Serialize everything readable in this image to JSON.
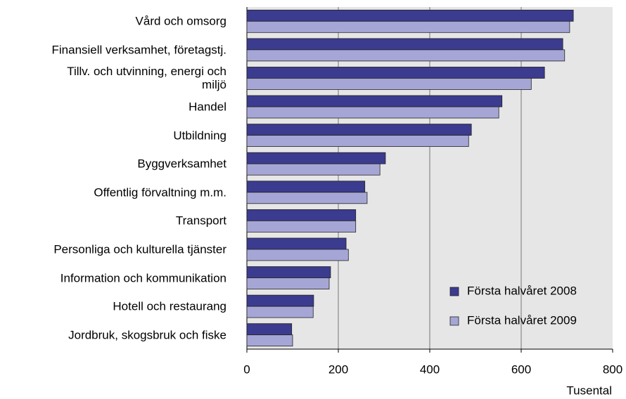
{
  "chart_data": {
    "type": "hbar",
    "categories": [
      "Vård och omsorg",
      "Finansiell verksamhet, företagstj.",
      "Tillv. och utvinning, energi och\nmiljö",
      "Handel",
      "Utbildning",
      "Byggverksamhet",
      "Offentlig förvaltning m.m.",
      "Transport",
      "Personliga och kulturella tjänster",
      "Information och kommunikation",
      "Hotell och restaurang",
      "Jordbruk, skogsbruk och fiske"
    ],
    "series": [
      {
        "name": "Första halvåret 2008",
        "color": "#3b3b8f",
        "values": [
          714,
          691,
          651,
          558,
          491,
          303,
          258,
          238,
          217,
          183,
          146,
          98
        ]
      },
      {
        "name": "Första halvåret 2009",
        "color": "#a6a6d6",
        "values": [
          706,
          695,
          622,
          551,
          485,
          291,
          263,
          238,
          222,
          180,
          145,
          100
        ]
      }
    ],
    "x_label": "Tusental",
    "xlim": [
      0,
      800
    ],
    "xticks": [
      0,
      200,
      400,
      600,
      800
    ],
    "grid": true,
    "legend": "lower right"
  }
}
